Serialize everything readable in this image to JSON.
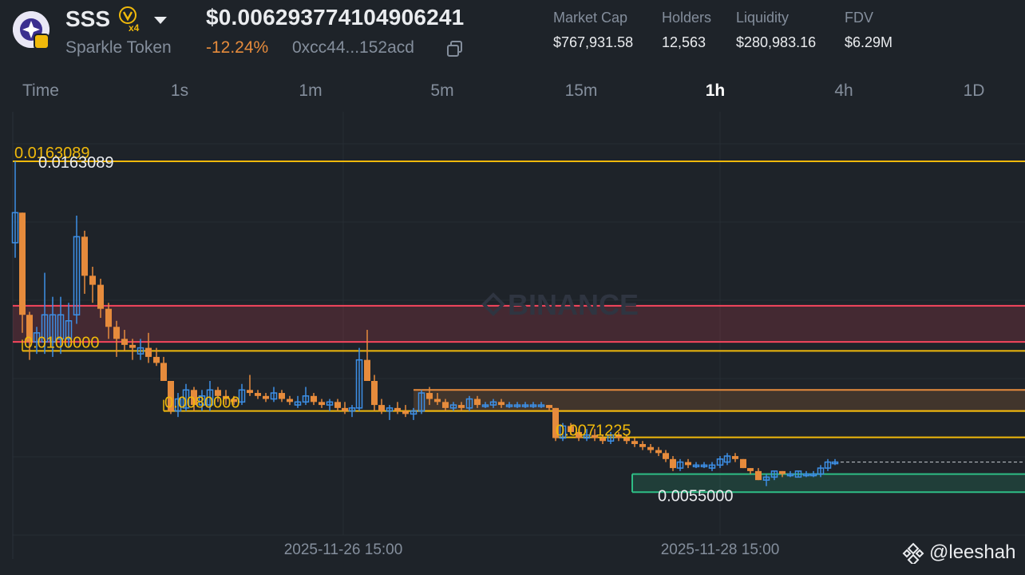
{
  "token": {
    "symbol": "SSS",
    "multiplier_badge": "x4",
    "name": "Sparkle Token",
    "price": "$0.006293774104906241",
    "change": "-12.24%",
    "address": "0xcc44...152acd"
  },
  "stats": [
    {
      "label": "Market Cap",
      "value": "$767,931.58"
    },
    {
      "label": "Holders",
      "value": "12,563"
    },
    {
      "label": "Liquidity",
      "value": "$280,983.16"
    },
    {
      "label": "FDV",
      "value": "$6.29M"
    }
  ],
  "tabs": [
    "Time",
    "1s",
    "1m",
    "5m",
    "15m",
    "1h",
    "4h",
    "1D"
  ],
  "active_tab": "1h",
  "chart_data": {
    "type": "candlestick",
    "watermark": "BINANCE",
    "x_ticks": [
      "2025-11-26 15:00",
      "2025-11-28 15:00"
    ],
    "annotations": [
      "0.0163089",
      "0.0163089",
      "0.0100000",
      "0.0080000",
      "0.0071225",
      "0.0055000"
    ],
    "lines": [
      0.0163089,
      0.01,
      0.008,
      0.0071225
    ],
    "zones": [
      {
        "from": 0.0103,
        "to": 0.0115,
        "color": "#f6465d"
      },
      {
        "from": 0.008,
        "to": 0.0087,
        "color": "#e68b3c"
      },
      {
        "from": 0.0053,
        "to": 0.0059,
        "color": "#2ebd85"
      }
    ],
    "current_price": 0.0063,
    "colors": {
      "up": "#3d8fe6",
      "down": "#e68b3c",
      "line": "#f0b90b",
      "red": "#f6465d",
      "green": "#2ebd85"
    }
  },
  "user_tag": "@leeshah"
}
